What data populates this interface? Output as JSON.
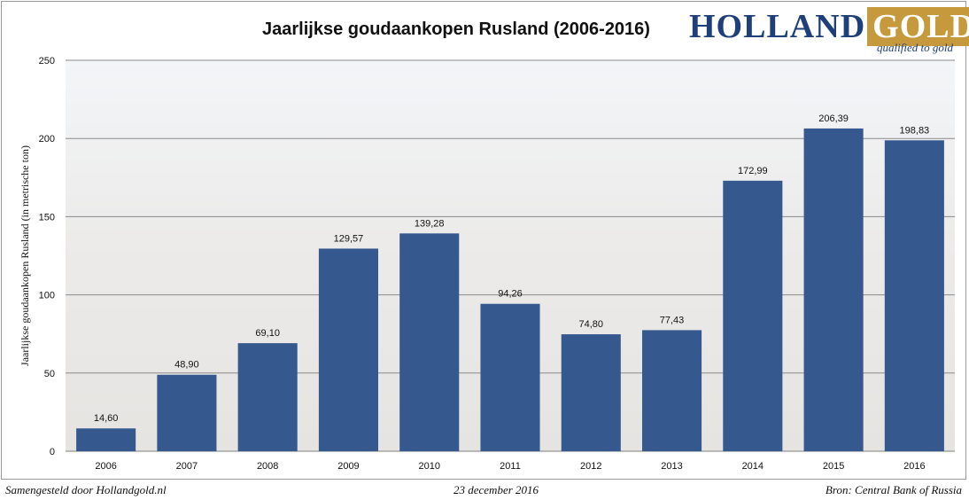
{
  "chart_data": {
    "type": "bar",
    "title": "Jaarlijkse goudaankopen Rusland (2006-2016)",
    "ylabel": "Jaarlijkse goudaankopen Rusland (in metrische ton)",
    "xlabel": "",
    "ylim": [
      0,
      250
    ],
    "yticks": [
      "0",
      "50",
      "100",
      "150",
      "200",
      "250"
    ],
    "categories": [
      "2006",
      "2007",
      "2008",
      "2009",
      "2010",
      "2011",
      "2012",
      "2013",
      "2014",
      "2015",
      "2016"
    ],
    "values": [
      14.6,
      48.9,
      69.1,
      129.57,
      139.28,
      94.26,
      74.8,
      77.43,
      172.99,
      206.39,
      198.83
    ],
    "value_labels": [
      "14,60",
      "48,90",
      "69,10",
      "129,57",
      "139,28",
      "94,26",
      "74,80",
      "77,43",
      "172,99",
      "206,39",
      "198,83"
    ],
    "grid": true,
    "bar_color": "#35598f"
  },
  "logo": {
    "main": "HOLLAND",
    "accent": "GOLD",
    "tagline": "qualified to gold"
  },
  "footer": {
    "left": "Samengesteld door Hollandgold.nl",
    "date": "23 december 2016",
    "source": "Bron: Central Bank of Russia"
  }
}
